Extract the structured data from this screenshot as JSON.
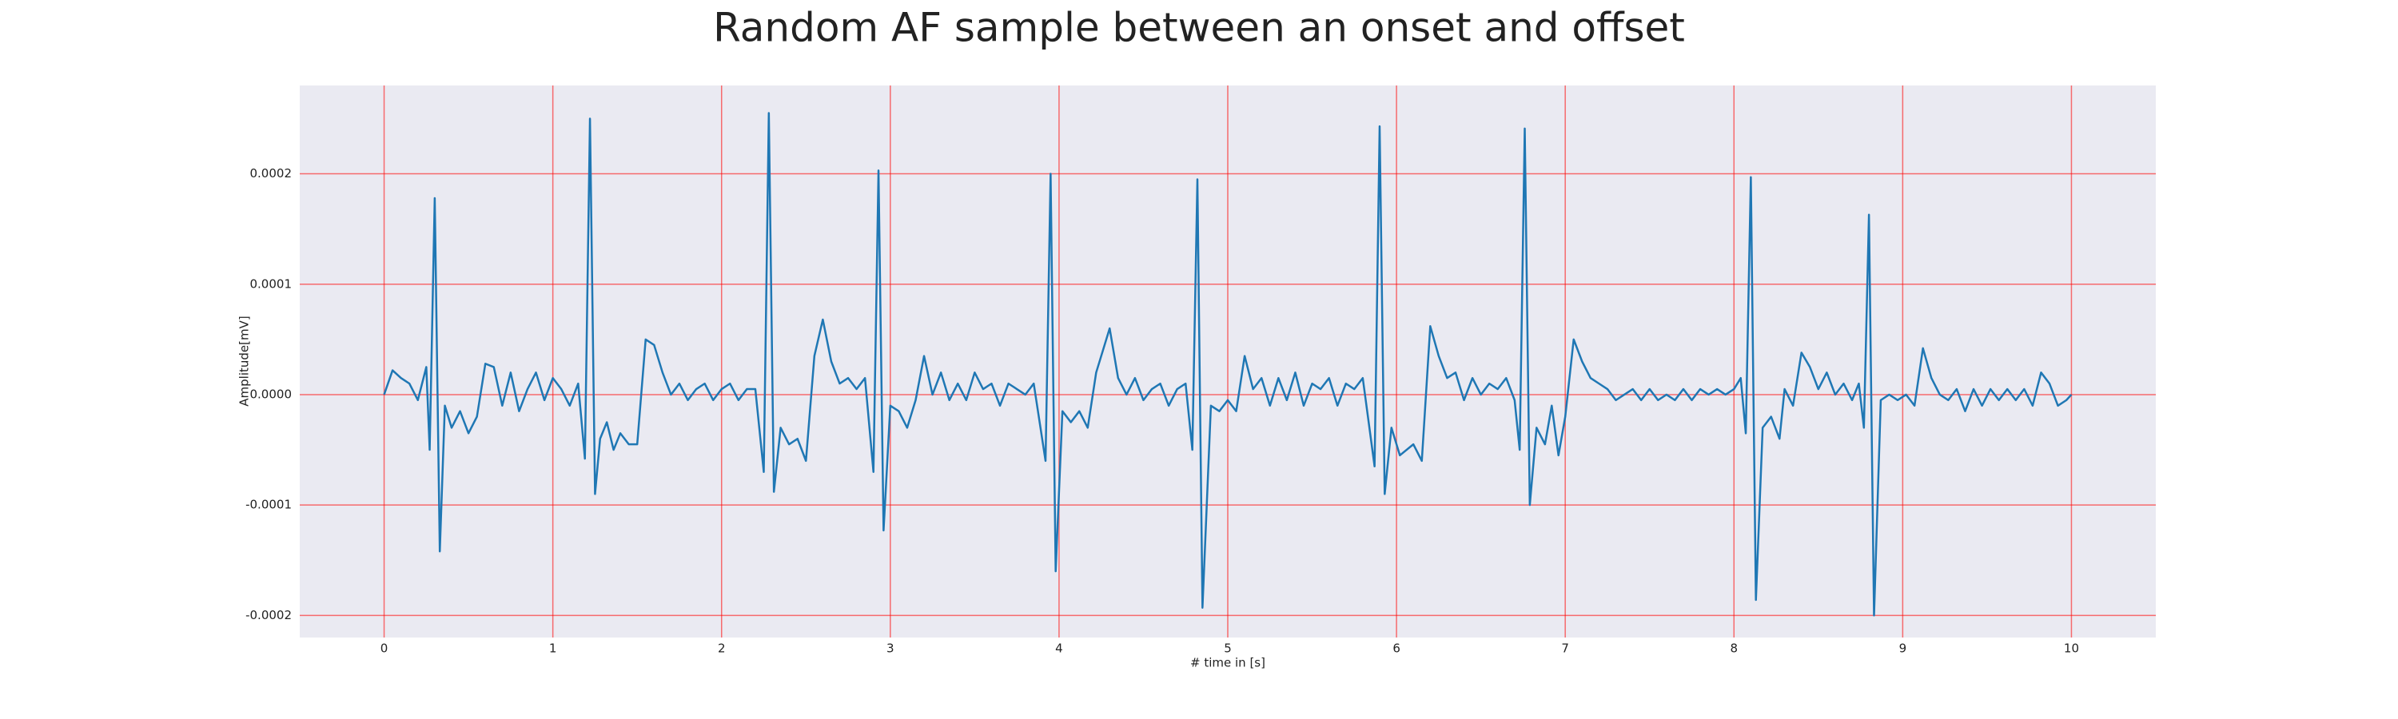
{
  "chart_data": {
    "type": "line",
    "title": "Random AF sample between an onset and offset",
    "x_label": "# time in [s]",
    "y_label": "Amplitude[mV]",
    "x": [
      0,
      0.05,
      0.1,
      0.15,
      0.2,
      0.25,
      0.27,
      0.3,
      0.33,
      0.36,
      0.4,
      0.45,
      0.5,
      0.55,
      0.6,
      0.65,
      0.7,
      0.75,
      0.8,
      0.85,
      0.9,
      0.95,
      1.0,
      1.05,
      1.1,
      1.15,
      1.19,
      1.22,
      1.25,
      1.28,
      1.32,
      1.36,
      1.4,
      1.45,
      1.5,
      1.55,
      1.6,
      1.65,
      1.7,
      1.75,
      1.8,
      1.85,
      1.9,
      1.95,
      2.0,
      2.05,
      2.1,
      2.15,
      2.2,
      2.25,
      2.28,
      2.31,
      2.35,
      2.4,
      2.45,
      2.5,
      2.55,
      2.6,
      2.65,
      2.7,
      2.75,
      2.8,
      2.85,
      2.9,
      2.93,
      2.96,
      3.0,
      3.05,
      3.1,
      3.15,
      3.2,
      3.25,
      3.3,
      3.35,
      3.4,
      3.45,
      3.5,
      3.55,
      3.6,
      3.65,
      3.7,
      3.75,
      3.8,
      3.85,
      3.92,
      3.95,
      3.98,
      4.02,
      4.07,
      4.12,
      4.17,
      4.22,
      4.3,
      4.35,
      4.4,
      4.45,
      4.5,
      4.55,
      4.6,
      4.65,
      4.7,
      4.75,
      4.79,
      4.82,
      4.85,
      4.9,
      4.95,
      5.0,
      5.05,
      5.1,
      5.15,
      5.2,
      5.25,
      5.3,
      5.35,
      5.4,
      5.45,
      5.5,
      5.55,
      5.6,
      5.65,
      5.7,
      5.75,
      5.8,
      5.87,
      5.9,
      5.93,
      5.97,
      6.02,
      6.1,
      6.15,
      6.2,
      6.25,
      6.3,
      6.35,
      6.4,
      6.45,
      6.5,
      6.55,
      6.6,
      6.65,
      6.7,
      6.73,
      6.76,
      6.79,
      6.83,
      6.88,
      6.92,
      6.96,
      7.0,
      7.05,
      7.1,
      7.15,
      7.2,
      7.25,
      7.3,
      7.35,
      7.4,
      7.45,
      7.5,
      7.55,
      7.6,
      7.65,
      7.7,
      7.75,
      7.8,
      7.85,
      7.9,
      7.95,
      8.0,
      8.04,
      8.07,
      8.1,
      8.13,
      8.17,
      8.22,
      8.27,
      8.3,
      8.35,
      8.4,
      8.45,
      8.5,
      8.55,
      8.6,
      8.65,
      8.7,
      8.74,
      8.77,
      8.8,
      8.83,
      8.87,
      8.92,
      8.97,
      9.02,
      9.07,
      9.12,
      9.17,
      9.22,
      9.27,
      9.32,
      9.37,
      9.42,
      9.47,
      9.52,
      9.57,
      9.62,
      9.67,
      9.72,
      9.77,
      9.82,
      9.87,
      9.92,
      9.97,
      10.0
    ],
    "series": [
      {
        "color": "#1f77b4",
        "values": [
          0,
          2.2e-05,
          1.5e-05,
          1e-05,
          -5e-06,
          2.5e-05,
          -5e-05,
          0.000178,
          -0.000142,
          -1e-05,
          -3e-05,
          -1.5e-05,
          -3.5e-05,
          -2e-05,
          2.8e-05,
          2.5e-05,
          -1e-05,
          2e-05,
          -1.5e-05,
          5e-06,
          2e-05,
          -5e-06,
          1.5e-05,
          5e-06,
          -1e-05,
          1e-05,
          -5.8e-05,
          0.00025,
          -9e-05,
          -4e-05,
          -2.5e-05,
          -5e-05,
          -3.5e-05,
          -4.5e-05,
          -4.5e-05,
          5e-05,
          4.5e-05,
          2e-05,
          0,
          1e-05,
          -5e-06,
          5e-06,
          1e-05,
          -5e-06,
          5e-06,
          1e-05,
          -5e-06,
          5e-06,
          5e-06,
          -7e-05,
          0.000255,
          -8.8e-05,
          -3e-05,
          -4.5e-05,
          -4e-05,
          -6e-05,
          3.5e-05,
          6.8e-05,
          3e-05,
          1e-05,
          1.5e-05,
          5e-06,
          1.5e-05,
          -7e-05,
          0.000203,
          -0.000123,
          -1e-05,
          -1.5e-05,
          -3e-05,
          -5e-06,
          3.5e-05,
          0,
          2e-05,
          -5e-06,
          1e-05,
          -5e-06,
          2e-05,
          5e-06,
          1e-05,
          -1e-05,
          1e-05,
          5e-06,
          0,
          1e-05,
          -6e-05,
          0.0002,
          -0.00016,
          -1.5e-05,
          -2.5e-05,
          -1.5e-05,
          -3e-05,
          2e-05,
          6e-05,
          1.5e-05,
          0,
          1.5e-05,
          -5e-06,
          5e-06,
          1e-05,
          -1e-05,
          5e-06,
          1e-05,
          -5e-05,
          0.000195,
          -0.000193,
          -1e-05,
          -1.5e-05,
          -5e-06,
          -1.5e-05,
          3.5e-05,
          5e-06,
          1.5e-05,
          -1e-05,
          1.5e-05,
          -5e-06,
          2e-05,
          -1e-05,
          1e-05,
          5e-06,
          1.5e-05,
          -1e-05,
          1e-05,
          5e-06,
          1.5e-05,
          -6.5e-05,
          0.000243,
          -9e-05,
          -3e-05,
          -5.5e-05,
          -4.5e-05,
          -6e-05,
          6.2e-05,
          3.5e-05,
          1.5e-05,
          2e-05,
          -5e-06,
          1.5e-05,
          0,
          1e-05,
          5e-06,
          1.5e-05,
          -5e-06,
          -5e-05,
          0.000241,
          -0.0001,
          -3e-05,
          -4.5e-05,
          -1e-05,
          -5.5e-05,
          -2e-05,
          5e-05,
          3e-05,
          1.5e-05,
          1e-05,
          5e-06,
          -5e-06,
          0,
          5e-06,
          -5e-06,
          5e-06,
          -5e-06,
          0,
          -5e-06,
          5e-06,
          -5e-06,
          5e-06,
          0,
          5e-06,
          0,
          5e-06,
          1.5e-05,
          -3.5e-05,
          0.000197,
          -0.000186,
          -3e-05,
          -2e-05,
          -4e-05,
          5e-06,
          -1e-05,
          3.8e-05,
          2.5e-05,
          5e-06,
          2e-05,
          0,
          1e-05,
          -5e-06,
          1e-05,
          -3e-05,
          0.000163,
          -0.0002,
          -5e-06,
          0,
          -5e-06,
          0,
          -1e-05,
          4.2e-05,
          1.5e-05,
          0,
          -5e-06,
          5e-06,
          -1.5e-05,
          5e-06,
          -1e-05,
          5e-06,
          -5e-06,
          5e-06,
          -5e-06,
          5e-06,
          -1e-05,
          2e-05,
          1e-05,
          -1e-05,
          -5e-06,
          0
        ]
      }
    ],
    "xlim": [
      -0.5,
      10.5
    ],
    "ylim": [
      -0.00022,
      0.00028
    ],
    "xticks": [
      0,
      1,
      2,
      3,
      4,
      5,
      6,
      7,
      8,
      9,
      10
    ],
    "yticks": [
      {
        "value": -0.0002,
        "label": "-0.0002"
      },
      {
        "value": -0.0001,
        "label": "-0.0001"
      },
      {
        "value": 0,
        "label": "0.0000"
      },
      {
        "value": 0.0001,
        "label": "0.0001"
      },
      {
        "value": 0.0002,
        "label": "0.0002"
      }
    ],
    "grid": true,
    "grid_color": "#ff0000",
    "background": "#eaeaf2"
  }
}
